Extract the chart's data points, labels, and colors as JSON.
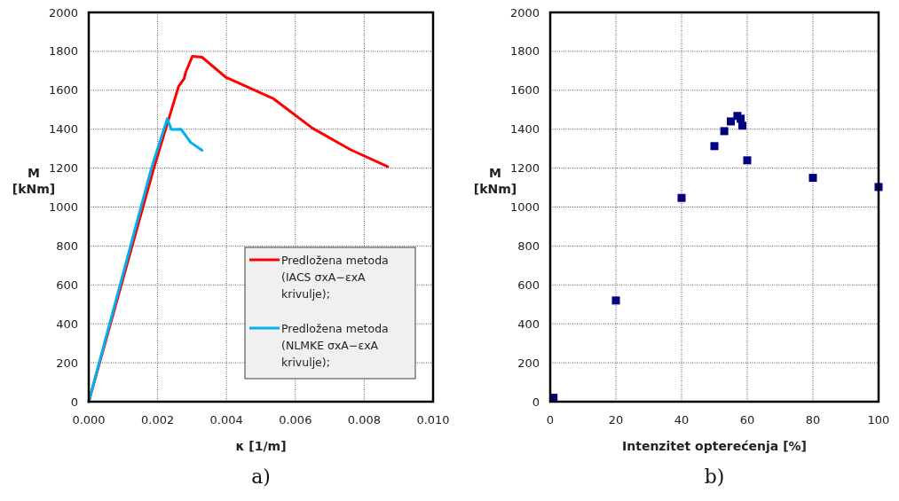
{
  "chart_data": [
    {
      "type": "line",
      "xlabel": "κ [1/m]",
      "ylabel": "M [kNm]",
      "xlim": [
        0,
        0.01
      ],
      "ylim": [
        0,
        2000
      ],
      "xticks": [
        {
          "value": 0,
          "label": "0.000"
        },
        {
          "value": 0.002,
          "label": "0.002"
        },
        {
          "value": 0.004,
          "label": "0.004"
        },
        {
          "value": 0.006,
          "label": "0.006"
        },
        {
          "value": 0.008,
          "label": "0.008"
        },
        {
          "value": 0.01,
          "label": "0.010"
        }
      ],
      "yticks": [
        0,
        200,
        400,
        600,
        800,
        1000,
        1200,
        1400,
        1600,
        1800,
        2000
      ],
      "grid": true,
      "legend": "bottom right",
      "marker": "none",
      "line_style": "solid",
      "annotations": [
        "a)"
      ],
      "series": [
        {
          "name": "Predložena metoda (IACS σxA−εxA krivulje);",
          "color": "#ff0000",
          "x": [
            0,
            0.00189,
            0.00261,
            0.00277,
            0.00281,
            0.00301,
            0.00329,
            0.00398,
            0.00537,
            0.00649,
            0.0076,
            0.00868
          ],
          "values": [
            0,
            1200,
            1620,
            1660,
            1690,
            1775,
            1770,
            1667,
            1556,
            1406,
            1295,
            1208
          ]
        },
        {
          "name": "Predložena metoda (NLMKE σxA−εxA krivulje);",
          "color": "#00b0f0",
          "x": [
            0,
            0.00182,
            0.00228,
            0.0024,
            0.00268,
            0.00296,
            0.00329
          ],
          "values": [
            0,
            1200,
            1454,
            1399,
            1400,
            1332,
            1292
          ]
        }
      ]
    },
    {
      "type": "scatter",
      "xlabel": "Intenzitet opterećenja [%]",
      "ylabel": "M [kNm]",
      "xlim": [
        0,
        100
      ],
      "ylim": [
        0,
        2000
      ],
      "xticks": [
        0,
        20,
        40,
        60,
        80,
        100
      ],
      "yticks": [
        0,
        200,
        400,
        600,
        800,
        1000,
        1200,
        1400,
        1600,
        1800,
        2000
      ],
      "grid": true,
      "marker": "square",
      "annotations": [
        "b)"
      ],
      "series": [
        {
          "color": "#000080",
          "x": [
            1,
            20,
            40,
            50,
            53,
            55,
            57,
            58,
            58.5,
            60,
            80,
            100
          ],
          "values": [
            20,
            520,
            1047,
            1313,
            1390,
            1440,
            1468,
            1454,
            1418,
            1240,
            1150,
            1103
          ]
        }
      ]
    }
  ]
}
